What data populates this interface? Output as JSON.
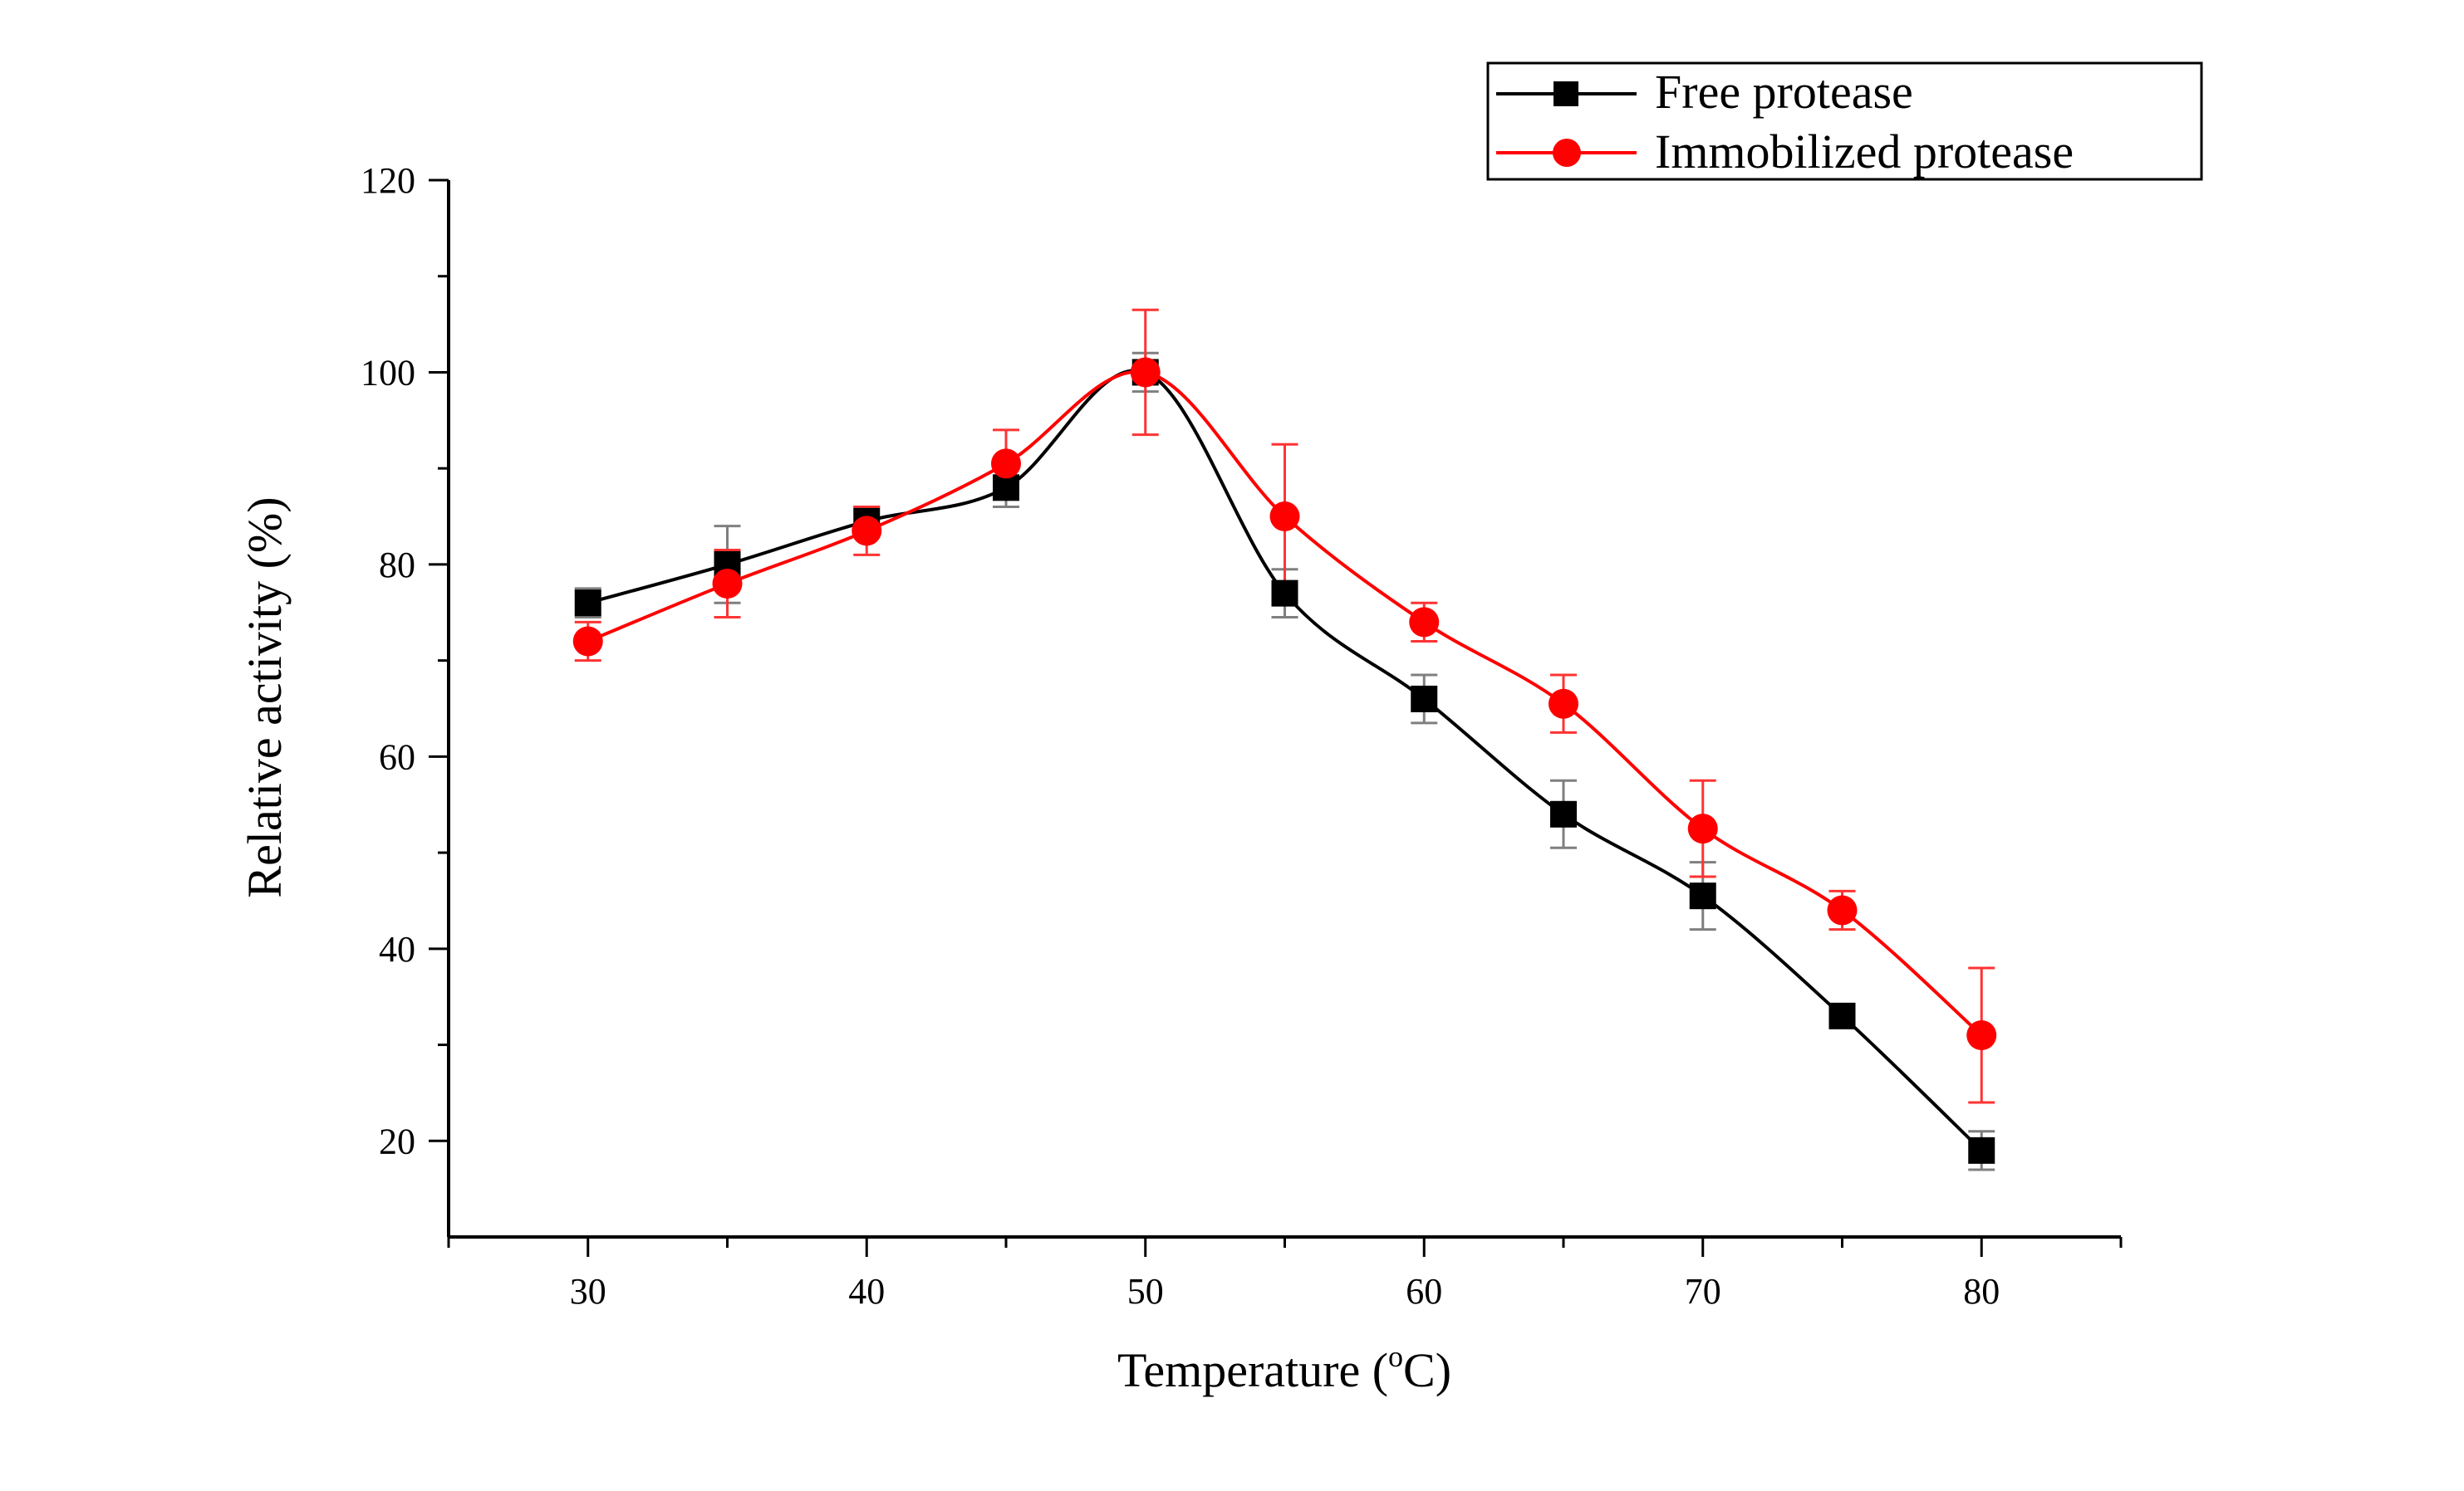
{
  "chart_data": {
    "type": "line",
    "title": "",
    "xlabel": "Temperature (",
    "xlabel_sup": "o",
    "xlabel_suffix": "C)",
    "ylabel": "Relative activity (%)",
    "xlim": [
      25,
      85
    ],
    "ylim": [
      10,
      120
    ],
    "x_ticks": [
      30,
      40,
      50,
      60,
      70,
      80
    ],
    "y_ticks": [
      20,
      40,
      60,
      80,
      100,
      120
    ],
    "x": [
      30,
      35,
      40,
      45,
      50,
      55,
      60,
      65,
      70,
      75,
      80
    ],
    "series": [
      {
        "name": "Free protease",
        "color": "#000000",
        "marker": "square",
        "values": [
          76,
          80,
          84.5,
          88,
          100,
          77,
          66,
          54,
          45.5,
          33,
          19
        ],
        "errors": [
          1.5,
          4,
          1.5,
          2,
          2,
          2.5,
          2.5,
          3.5,
          3.5,
          1,
          2
        ]
      },
      {
        "name": "Immobilized protease",
        "color": "#ff0000",
        "marker": "circle",
        "values": [
          72,
          78,
          83.5,
          90.5,
          100,
          85,
          74,
          65.5,
          52.5,
          44,
          31
        ],
        "errors": [
          2,
          3.5,
          2.5,
          3.5,
          6.5,
          7.5,
          2,
          3,
          5,
          2,
          7
        ]
      }
    ],
    "legend_position": "top-right"
  }
}
